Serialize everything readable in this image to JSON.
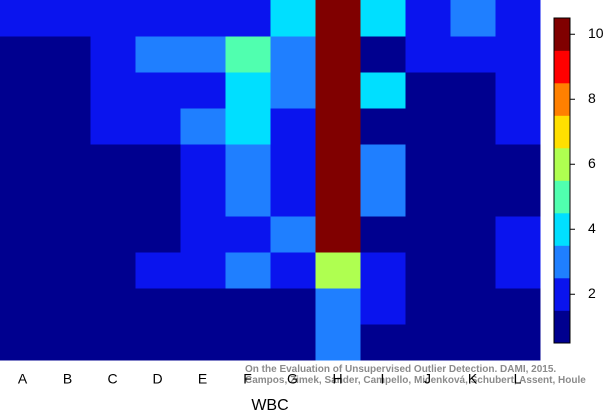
{
  "chart_data": {
    "type": "heatmap",
    "x_label": "WBC",
    "caption": [
      "On the Evaluation of Unsupervised Outlier Detection. DAMI, 2015.",
      "Campos, Zimek, Sander, Campello, Micenková, Schubert, Assent, Houle"
    ],
    "categories": [
      "A",
      "B",
      "C",
      "D",
      "E",
      "F",
      "G",
      "H",
      "I",
      "J",
      "K",
      "L"
    ],
    "values": [
      [
        2,
        2,
        2,
        2,
        2,
        2,
        4,
        10,
        4,
        2,
        3,
        2
      ],
      [
        1,
        1,
        2,
        3,
        3,
        5,
        3,
        10,
        1,
        2,
        2,
        2
      ],
      [
        1,
        1,
        2,
        2,
        2,
        4,
        3,
        10,
        4,
        1,
        1,
        2
      ],
      [
        1,
        1,
        2,
        2,
        3,
        4,
        2,
        10,
        1,
        1,
        1,
        2
      ],
      [
        1,
        1,
        1,
        1,
        2,
        3,
        2,
        10,
        3,
        1,
        1,
        1
      ],
      [
        1,
        1,
        1,
        1,
        2,
        3,
        2,
        10,
        3,
        1,
        1,
        1
      ],
      [
        1,
        1,
        1,
        1,
        2,
        2,
        3,
        10,
        1,
        1,
        1,
        2
      ],
      [
        1,
        1,
        1,
        2,
        2,
        3,
        2,
        6,
        2,
        1,
        1,
        2
      ],
      [
        1,
        1,
        1,
        1,
        1,
        1,
        1,
        3,
        2,
        1,
        1,
        1
      ],
      [
        1,
        1,
        1,
        1,
        1,
        1,
        1,
        3,
        1,
        1,
        1,
        1
      ]
    ],
    "colorbar": {
      "lim": [
        0.5,
        10.5
      ],
      "ticks": [
        2,
        4,
        6,
        8,
        10
      ],
      "colors": [
        "#00008f",
        "#0a14ee",
        "#1f7fff",
        "#00dfff",
        "#50ffaf",
        "#afff50",
        "#ffdf00",
        "#ff8000",
        "#ff0000",
        "#800000"
      ]
    }
  }
}
